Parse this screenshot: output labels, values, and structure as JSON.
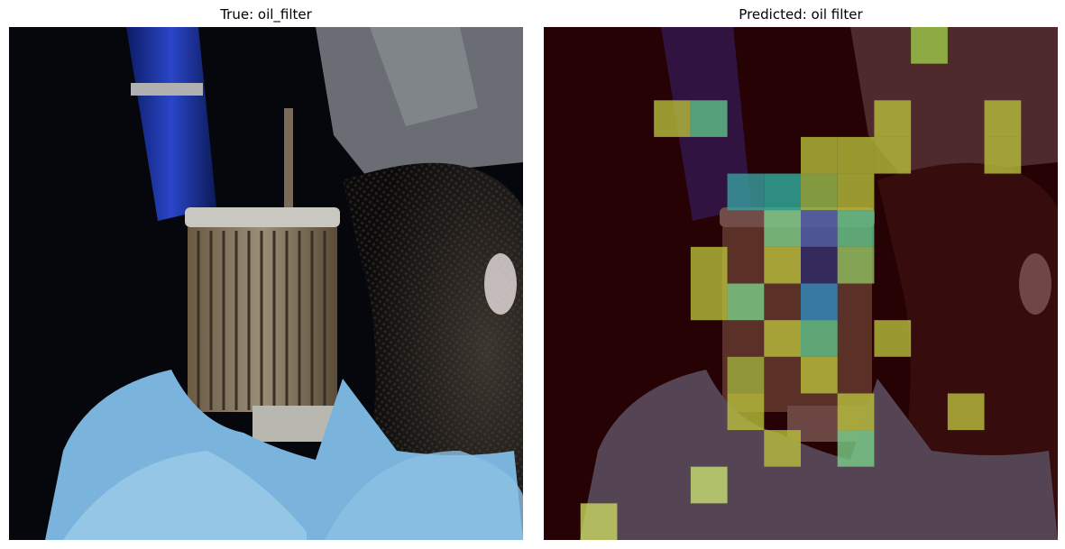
{
  "figure": {
    "left_panel": {
      "title": "True: oil_filter",
      "image_subject": "oil filter"
    },
    "right_panel": {
      "title": "Predicted: oil filter",
      "image_subject": "oil filter with attention overlay",
      "overlay": {
        "grid": [
          14,
          14
        ],
        "base_color": "#3d0000",
        "cells": [
          {
            "col": 10,
            "row": 0,
            "color": "#9fcc4a"
          },
          {
            "col": 3,
            "row": 2,
            "color": "#b8bf3c"
          },
          {
            "col": 4,
            "row": 2,
            "color": "#5fc48a"
          },
          {
            "col": 9,
            "row": 2,
            "color": "#b8bf3c"
          },
          {
            "col": 12,
            "row": 2,
            "color": "#b8bf3c"
          },
          {
            "col": 12,
            "row": 3,
            "color": "#b8bf3c"
          },
          {
            "col": 7,
            "row": 3,
            "color": "#b8bf3c"
          },
          {
            "col": 8,
            "row": 3,
            "color": "#b8bf3c"
          },
          {
            "col": 9,
            "row": 3,
            "color": "#b8bf3c"
          },
          {
            "col": 5,
            "row": 4,
            "color": "#3aa0a0"
          },
          {
            "col": 6,
            "row": 4,
            "color": "#2fb0a0"
          },
          {
            "col": 7,
            "row": 4,
            "color": "#9bbf50"
          },
          {
            "col": 8,
            "row": 4,
            "color": "#b8bf3c"
          },
          {
            "col": 6,
            "row": 5,
            "color": "#7ad08a"
          },
          {
            "col": 7,
            "row": 5,
            "color": "#4b5fb0"
          },
          {
            "col": 8,
            "row": 5,
            "color": "#5fc48a"
          },
          {
            "col": 6,
            "row": 6,
            "color": "#b8bf3c"
          },
          {
            "col": 7,
            "row": 6,
            "color": "#2a2a6a"
          },
          {
            "col": 8,
            "row": 6,
            "color": "#8fc060"
          },
          {
            "col": 4,
            "row": 6,
            "color": "#b8bf3c"
          },
          {
            "col": 4,
            "row": 7,
            "color": "#b8bf3c"
          },
          {
            "col": 5,
            "row": 7,
            "color": "#7ad08a"
          },
          {
            "col": 7,
            "row": 7,
            "color": "#2f8cc0"
          },
          {
            "col": 6,
            "row": 8,
            "color": "#b8bf3c"
          },
          {
            "col": 7,
            "row": 8,
            "color": "#5fc48a"
          },
          {
            "col": 9,
            "row": 8,
            "color": "#b8bf3c"
          },
          {
            "col": 7,
            "row": 9,
            "color": "#b8bf3c"
          },
          {
            "col": 5,
            "row": 9,
            "color": "#a0b040"
          },
          {
            "col": 5,
            "row": 10,
            "color": "#b8bf3c"
          },
          {
            "col": 8,
            "row": 10,
            "color": "#b8bf3c"
          },
          {
            "col": 11,
            "row": 10,
            "color": "#b8bf3c"
          },
          {
            "col": 6,
            "row": 11,
            "color": "#b8bf3c"
          },
          {
            "col": 8,
            "row": 11,
            "color": "#7ad08a"
          },
          {
            "col": 4,
            "row": 12,
            "color": "#c8e070"
          },
          {
            "col": 1,
            "row": 13,
            "color": "#c8d860"
          }
        ]
      }
    }
  }
}
